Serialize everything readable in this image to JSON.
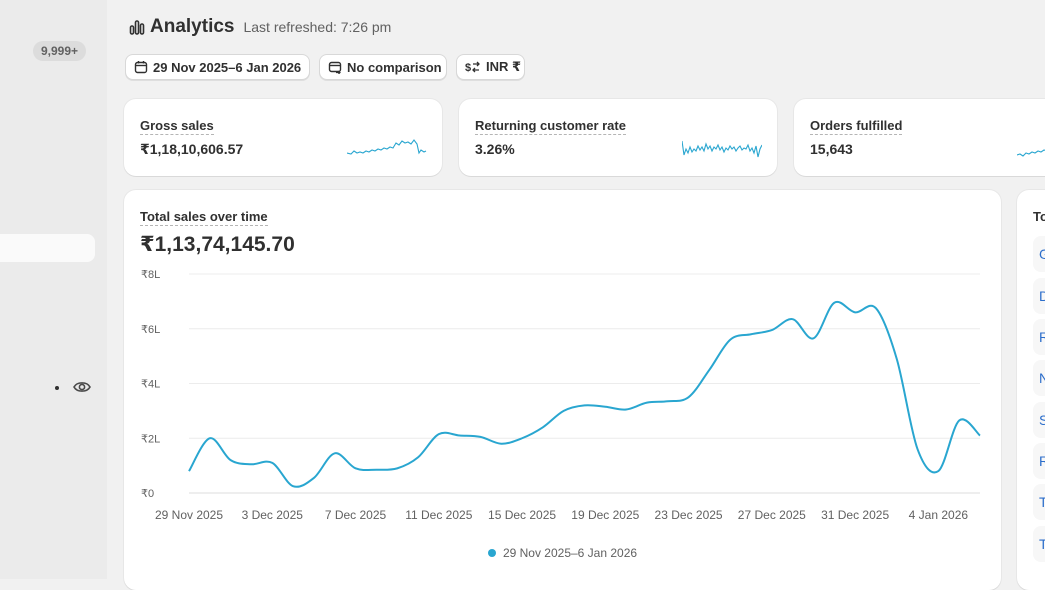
{
  "sidebar": {
    "badge": "9,999+",
    "eye_icon": "eye-icon"
  },
  "header": {
    "title": "Analytics",
    "refreshed": "Last refreshed: 7:26 pm",
    "icon": "analytics-bar-icon"
  },
  "filters": {
    "date_range": "29 Nov 2025–6 Jan 2026",
    "comparison": "No comparison",
    "currency": "INR ₹"
  },
  "metrics": [
    {
      "title": "Gross sales",
      "value": "₹1,18,10,606.57"
    },
    {
      "title": "Returning customer rate",
      "value": "3.26%"
    },
    {
      "title": "Orders fulfilled",
      "value": "15,643"
    }
  ],
  "sales_chart": {
    "title": "Total sales over time",
    "total": "₹1,13,74,145.70",
    "legend": "29 Nov 2025–6 Jan 2026"
  },
  "right_panel": {
    "title": "To",
    "rows": [
      "G",
      "D",
      "R",
      "N",
      "S",
      "R",
      "T",
      "T"
    ]
  },
  "colors": {
    "accent": "#29a6d0",
    "link": "#2c6ecb",
    "background": "#f1f1f1"
  },
  "chart_data": {
    "type": "line",
    "title": "Total sales over time",
    "x_tick_labels": [
      "29 Nov 2025",
      "3 Dec 2025",
      "7 Dec 2025",
      "11 Dec 2025",
      "15 Dec 2025",
      "19 Dec 2025",
      "23 Dec 2025",
      "27 Dec 2025",
      "31 Dec 2025",
      "4 Jan 2026"
    ],
    "y_tick_labels": [
      "₹0",
      "₹2L",
      "₹4L",
      "₹6L",
      "₹8L"
    ],
    "ylim": [
      0,
      8
    ],
    "y_unit": "L",
    "grid": true,
    "legend_position": "bottom",
    "series": [
      {
        "name": "29 Nov 2025–6 Jan 2026",
        "x": [
          "29 Nov",
          "30 Nov",
          "1 Dec",
          "2 Dec",
          "3 Dec",
          "4 Dec",
          "5 Dec",
          "6 Dec",
          "7 Dec",
          "8 Dec",
          "9 Dec",
          "10 Dec",
          "11 Dec",
          "12 Dec",
          "13 Dec",
          "14 Dec",
          "15 Dec",
          "16 Dec",
          "17 Dec",
          "18 Dec",
          "19 Dec",
          "20 Dec",
          "21 Dec",
          "22 Dec",
          "23 Dec",
          "24 Dec",
          "25 Dec",
          "26 Dec",
          "27 Dec",
          "28 Dec",
          "29 Dec",
          "30 Dec",
          "31 Dec",
          "1 Jan",
          "2 Jan",
          "3 Jan",
          "4 Jan",
          "5 Jan",
          "6 Jan"
        ],
        "values": [
          0.8,
          2.0,
          1.2,
          1.05,
          1.1,
          0.25,
          0.55,
          1.45,
          0.9,
          0.85,
          0.9,
          1.3,
          2.15,
          2.1,
          2.05,
          1.8,
          2.0,
          2.4,
          3.0,
          3.2,
          3.15,
          3.05,
          3.3,
          3.35,
          3.5,
          4.5,
          5.6,
          5.8,
          5.95,
          6.35,
          5.65,
          6.95,
          6.6,
          6.75,
          4.9,
          1.6,
          0.8,
          2.65,
          2.1
        ]
      }
    ]
  }
}
